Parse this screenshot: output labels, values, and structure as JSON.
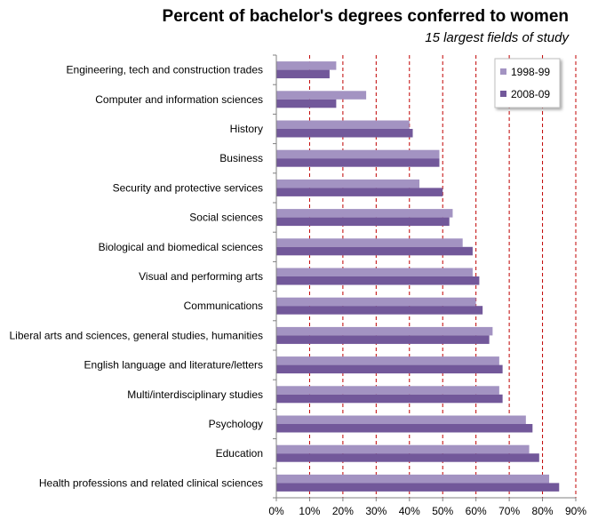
{
  "chart_data": {
    "type": "bar",
    "orientation": "horizontal",
    "title": "Percent of bachelor's degrees conferred to women",
    "subtitle": "15 largest fields of study",
    "categories": [
      "Engineering, tech and construction trades",
      "Computer and information sciences",
      "History",
      "Business",
      "Security and protective services",
      "Social sciences",
      "Biological and biomedical sciences",
      "Visual and performing arts",
      "Communications",
      "Liberal arts and sciences, general studies, humanities",
      "English language and literature/letters",
      "Multi/interdisciplinary studies",
      "Psychology",
      "Education",
      "Health professions and related clinical sciences"
    ],
    "series": [
      {
        "name": "1998-99",
        "color": "#a393c2",
        "values": [
          18,
          27,
          40,
          49,
          43,
          53,
          56,
          59,
          60,
          65,
          67,
          67,
          75,
          76,
          82
        ]
      },
      {
        "name": "2008-09",
        "color": "#72589a",
        "values": [
          16,
          18,
          41,
          49,
          50,
          52,
          59,
          61,
          62,
          64,
          68,
          68,
          77,
          79,
          85
        ]
      }
    ],
    "xlim": [
      0,
      90
    ],
    "xticks": [
      "0%",
      "10%",
      "20%",
      "30%",
      "40%",
      "50%",
      "60%",
      "70%",
      "80%",
      "90%"
    ],
    "grid": "vertical dashed",
    "grid_color": "#c00000",
    "legend_placement": "top-right"
  }
}
